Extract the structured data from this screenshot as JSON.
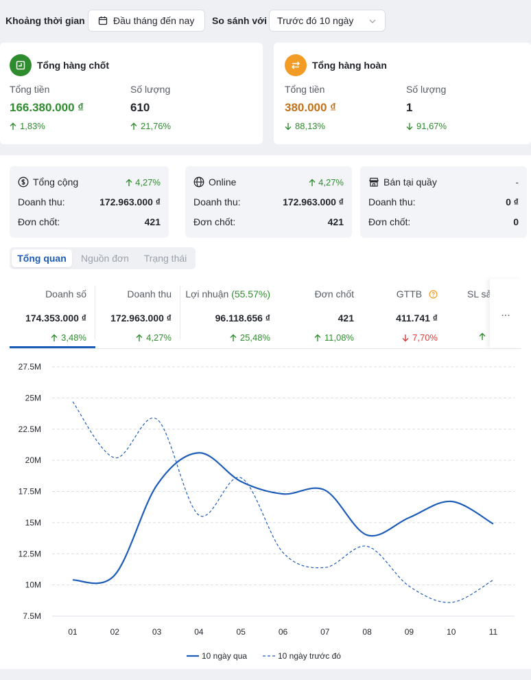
{
  "filters": {
    "period_label": "Khoảng thời gian",
    "period_value": "Đầu tháng đến nay",
    "compare_label": "So sánh với",
    "compare_value": "Trước đó 10 ngày"
  },
  "summary": {
    "closed": {
      "title": "Tổng hàng chốt",
      "total_label": "Tổng tiền",
      "total_value": "166.380.000 ₫",
      "total_change": "1,83%",
      "qty_label": "Số lượng",
      "qty_value": "610",
      "qty_change": "21,76%",
      "accent": "#2e8b2e"
    },
    "returned": {
      "title": "Tổng hàng hoàn",
      "total_label": "Tổng tiền",
      "total_value": "380.000 ₫",
      "total_change": "88,13%",
      "qty_label": "Số lượng",
      "qty_value": "1",
      "qty_change": "91,67%",
      "accent": "#f39c25"
    }
  },
  "channels": [
    {
      "name": "Tổng cộng",
      "icon": "dollar-icon",
      "change": "4,27%",
      "revenue_label": "Doanh thu:",
      "revenue": "172.963.000 ₫",
      "orders_label": "Đơn chốt:",
      "orders": "421"
    },
    {
      "name": "Online",
      "icon": "globe-icon",
      "change": "4,27%",
      "revenue_label": "Doanh thu:",
      "revenue": "172.963.000 ₫",
      "orders_label": "Đơn chốt:",
      "orders": "421"
    },
    {
      "name": "Bán tại quầy",
      "icon": "store-icon",
      "change": "-",
      "revenue_label": "Doanh thu:",
      "revenue": "0 ₫",
      "orders_label": "Đơn chốt:",
      "orders": "0"
    }
  ],
  "tabs": [
    {
      "label": "Tổng quan",
      "active": true
    },
    {
      "label": "Nguồn đơn",
      "active": false
    },
    {
      "label": "Trạng thái",
      "active": false
    }
  ],
  "kpis": [
    {
      "label": "Doanh số",
      "value": "174.353.000 ₫",
      "change": "3,48%",
      "direction": "up"
    },
    {
      "label": "Doanh thu",
      "value": "172.963.000 ₫",
      "change": "4,27%",
      "direction": "up"
    },
    {
      "label": "Lợi nhuận",
      "label_extra": "(55.57%)",
      "value": "96.118.656 ₫",
      "change": "25,48%",
      "direction": "up"
    },
    {
      "label": "Đơn chốt",
      "value": "421",
      "change": "11,08%",
      "direction": "up"
    },
    {
      "label": "GTTB",
      "value": "411.741 ₫",
      "change": "7,70%",
      "direction": "down"
    },
    {
      "label": "SL sản",
      "value": "",
      "change": "",
      "direction": "up"
    }
  ],
  "more_label": "...",
  "colors": {
    "primary": "#1c5bb8",
    "up": "#2e8b2e",
    "down": "#d93a3a",
    "grid": "#d9dde3"
  },
  "chart_data": {
    "type": "line",
    "x": [
      "01",
      "02",
      "03",
      "04",
      "05",
      "06",
      "07",
      "08",
      "09",
      "10",
      "11"
    ],
    "ylim": [
      7.5,
      27.5
    ],
    "yticks": [
      "7.5M",
      "10M",
      "12.5M",
      "15M",
      "17.5M",
      "20M",
      "22.5M",
      "25M",
      "27.5M"
    ],
    "series": [
      {
        "name": "10 ngày qua",
        "style": "solid",
        "values": [
          10.4,
          10.8,
          18.0,
          20.6,
          18.3,
          17.3,
          17.6,
          14.0,
          15.4,
          16.7,
          14.9
        ]
      },
      {
        "name": "10 ngày trước đó",
        "style": "dashed",
        "values": [
          24.7,
          20.2,
          23.3,
          15.6,
          18.6,
          12.6,
          11.4,
          13.1,
          9.9,
          8.6,
          10.4
        ]
      }
    ],
    "legend": "bottom",
    "grid": true
  }
}
